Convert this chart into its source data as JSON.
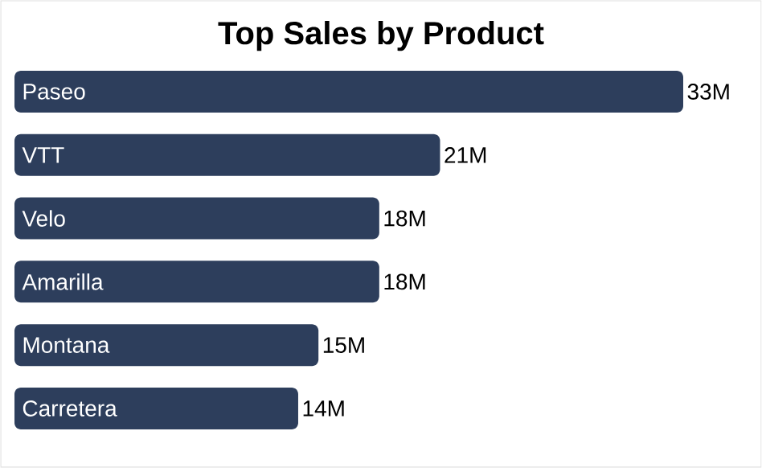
{
  "chart_data": {
    "type": "bar",
    "orientation": "horizontal",
    "title": "Top Sales by Product",
    "categories": [
      "Paseo",
      "VTT",
      "Velo",
      "Amarilla",
      "Montana",
      "Carretera"
    ],
    "values": [
      33,
      21,
      18,
      18,
      15,
      14
    ],
    "value_labels": [
      "33M",
      "21M",
      "18M",
      "18M",
      "15M",
      "14M"
    ],
    "color": "#2d3e5c"
  }
}
